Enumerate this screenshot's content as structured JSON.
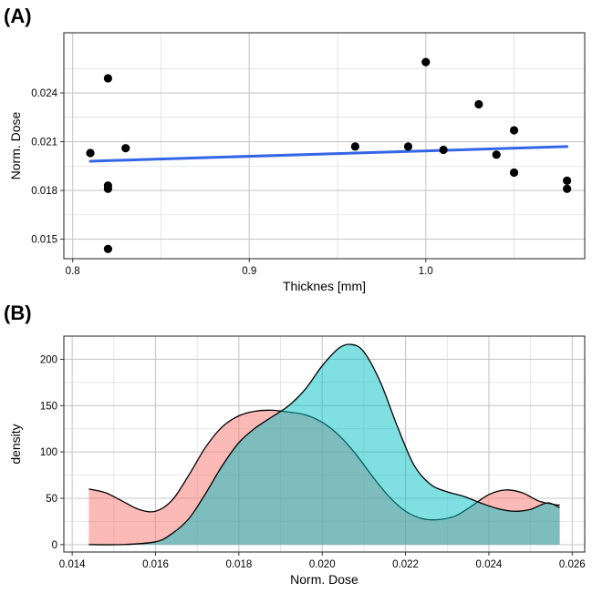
{
  "chart_data": [
    {
      "panel_label": "(A)",
      "type": "scatter",
      "xlabel": "Thicknes [mm]",
      "ylabel": "Norm. Dose",
      "xlim": [
        0.795,
        1.09
      ],
      "ylim": [
        0.0138,
        0.0277
      ],
      "x_ticks": [
        0.8,
        0.9,
        1.0
      ],
      "x_tick_labels": [
        "0.8",
        "0.9",
        "1.0"
      ],
      "y_ticks": [
        0.015,
        0.018,
        0.021,
        0.024
      ],
      "y_tick_labels": [
        "0.015",
        "0.018",
        "0.021",
        "0.024"
      ],
      "grid": true,
      "point_color": "#000000",
      "line_color": "#3366e6",
      "points": [
        {
          "x": 0.81,
          "y": 0.0203
        },
        {
          "x": 0.82,
          "y": 0.0249
        },
        {
          "x": 0.82,
          "y": 0.0183
        },
        {
          "x": 0.82,
          "y": 0.0181
        },
        {
          "x": 0.82,
          "y": 0.0144
        },
        {
          "x": 0.83,
          "y": 0.0206
        },
        {
          "x": 0.96,
          "y": 0.0207
        },
        {
          "x": 0.99,
          "y": 0.0207
        },
        {
          "x": 1.0,
          "y": 0.0259
        },
        {
          "x": 1.01,
          "y": 0.0205
        },
        {
          "x": 1.03,
          "y": 0.0233
        },
        {
          "x": 1.04,
          "y": 0.0202
        },
        {
          "x": 1.05,
          "y": 0.0217
        },
        {
          "x": 1.05,
          "y": 0.0191
        },
        {
          "x": 1.08,
          "y": 0.0186
        },
        {
          "x": 1.08,
          "y": 0.0181
        }
      ],
      "fit_line": {
        "x": [
          0.81,
          1.08
        ],
        "y": [
          0.0198,
          0.0207
        ]
      }
    },
    {
      "panel_label": "(B)",
      "type": "area",
      "xlabel": "Norm. Dose",
      "ylabel": "density",
      "xlim": [
        0.0138,
        0.0263
      ],
      "ylim": [
        -8,
        225
      ],
      "x_ticks": [
        0.014,
        0.016,
        0.018,
        0.02,
        0.022,
        0.024,
        0.026
      ],
      "x_tick_labels": [
        "0.014",
        "0.016",
        "0.018",
        "0.020",
        "0.022",
        "0.024",
        "0.026"
      ],
      "y_ticks": [
        0,
        50,
        100,
        150,
        200
      ],
      "y_tick_labels": [
        "0",
        "50",
        "100",
        "150",
        "200"
      ],
      "grid": true,
      "series": [
        {
          "color": "#f8766d",
          "x": [
            0.0144,
            0.0148,
            0.0152,
            0.0156,
            0.016,
            0.0164,
            0.0168,
            0.0172,
            0.0176,
            0.018,
            0.0184,
            0.0188,
            0.0192,
            0.0196,
            0.02,
            0.0204,
            0.0208,
            0.0212,
            0.0216,
            0.022,
            0.0224,
            0.0228,
            0.0232,
            0.0236,
            0.024,
            0.0244,
            0.0248,
            0.0252,
            0.0256,
            0.0257
          ],
          "y": [
            60,
            56,
            47,
            38,
            36,
            48,
            75,
            105,
            127,
            139,
            144,
            145,
            143,
            140,
            132,
            118,
            98,
            74,
            52,
            36,
            28,
            27,
            31,
            42,
            54,
            59,
            56,
            47,
            43,
            43
          ]
        },
        {
          "color": "#00bfc4",
          "x": [
            0.0144,
            0.0152,
            0.016,
            0.0164,
            0.0168,
            0.0172,
            0.0176,
            0.018,
            0.0184,
            0.0188,
            0.0192,
            0.0196,
            0.02,
            0.0204,
            0.0207,
            0.021,
            0.0214,
            0.0218,
            0.0222,
            0.0226,
            0.023,
            0.0234,
            0.0238,
            0.0242,
            0.0246,
            0.025,
            0.0254,
            0.0257
          ],
          "y": [
            0,
            0,
            3,
            12,
            28,
            55,
            85,
            110,
            126,
            138,
            150,
            168,
            193,
            212,
            216,
            208,
            175,
            128,
            86,
            65,
            57,
            52,
            45,
            39,
            36,
            38,
            45,
            40
          ]
        }
      ]
    }
  ]
}
